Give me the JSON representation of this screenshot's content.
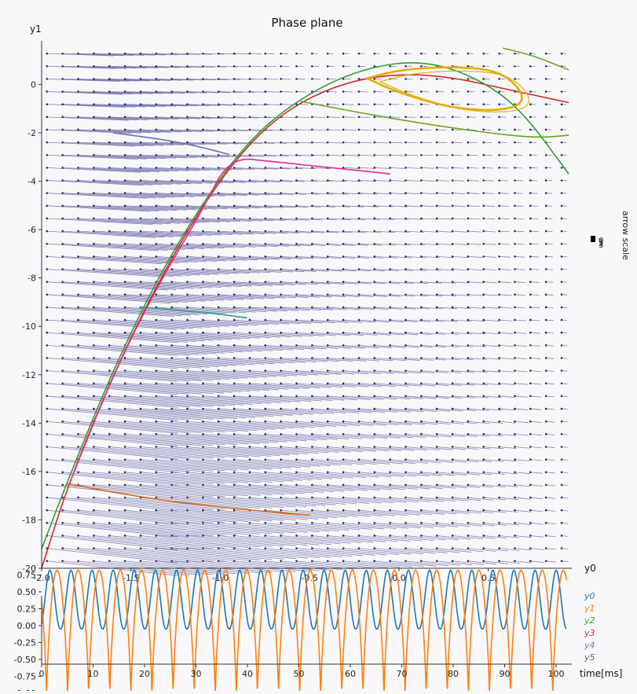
{
  "phase_plane": {
    "title": "Phase plane",
    "xlabel": "y0",
    "ylabel": "y1",
    "colorbar_label": "arrow scale",
    "colorbar_ticks": [
      "0",
      "1",
      "2",
      "3"
    ]
  },
  "time_plot": {
    "xlabel": "time[ms]",
    "legend": [
      "y0",
      "y1",
      "y2",
      "y3",
      "y4",
      "y5"
    ]
  },
  "colors": {
    "legend": [
      "#1f77b4",
      "#ff7f0e",
      "#2ca02c",
      "#d62728",
      "#9467bd",
      "#8c564b"
    ],
    "vector_field": "#5a5a9e",
    "background": "#f8f8fa"
  },
  "chart_data": [
    {
      "type": "scatter",
      "title": "Phase plane",
      "xlabel": "y0",
      "ylabel": "y1",
      "xlim": [
        -2.0,
        0.95
      ],
      "ylim": [
        -20,
        1.8
      ],
      "x_ticks": [
        "-2.0",
        "-1.5",
        "-1.0",
        "-0.5",
        "0.0",
        "0.5"
      ],
      "y_ticks": [
        "0",
        "-2",
        "-4",
        "-6",
        "-8",
        "-10",
        "-12",
        "-14",
        "-16",
        "-18",
        "-20"
      ],
      "vector_field": "quiver",
      "trajectories": [
        {
          "color": "#d62728",
          "points": [
            [
              -2.0,
              -20.0
            ],
            [
              -1.85,
              -16.5
            ],
            [
              -1.6,
              -12.0
            ],
            [
              -1.35,
              -8.2
            ],
            [
              -1.1,
              -5.0
            ],
            [
              -0.85,
              -2.5
            ],
            [
              -0.6,
              -0.9
            ],
            [
              -0.3,
              0.1
            ],
            [
              0.0,
              0.45
            ],
            [
              0.3,
              0.3
            ],
            [
              0.6,
              -0.2
            ],
            [
              0.95,
              -0.75
            ]
          ]
        },
        {
          "color": "#2ca02c",
          "points": [
            [
              -2.0,
              -19.2
            ],
            [
              -1.85,
              -16.3
            ],
            [
              -1.6,
              -11.8
            ],
            [
              -1.35,
              -8.0
            ],
            [
              -1.1,
              -4.9
            ],
            [
              -0.85,
              -2.4
            ],
            [
              -0.6,
              -0.8
            ],
            [
              -0.3,
              0.4
            ],
            [
              0.0,
              0.95
            ],
            [
              0.25,
              0.8
            ],
            [
              0.5,
              0.0
            ],
            [
              0.7,
              -1.2
            ],
            [
              0.95,
              -3.7
            ]
          ]
        },
        {
          "color": "#e7298a",
          "points": [
            [
              -1.85,
              -16.6
            ],
            [
              -1.6,
              -12.0
            ],
            [
              -1.35,
              -8.3
            ],
            [
              -1.1,
              -5.2
            ],
            [
              -0.95,
              -3.0
            ],
            [
              -0.7,
              -3.2
            ],
            [
              -0.3,
              -3.5
            ],
            [
              -0.05,
              -3.7
            ]
          ]
        },
        {
          "color": "#d96a10",
          "points": [
            [
              -1.86,
              -16.5
            ],
            [
              -1.5,
              -17.0
            ],
            [
              -1.0,
              -17.5
            ],
            [
              -0.5,
              -17.8
            ]
          ]
        },
        {
          "color": "#1f9e7a",
          "points": [
            [
              -1.45,
              -9.2
            ],
            [
              -1.2,
              -9.35
            ],
            [
              -1.0,
              -9.5
            ],
            [
              -0.85,
              -9.65
            ]
          ]
        },
        {
          "color": "#6f6fb0",
          "points": [
            [
              -1.6,
              -2.0
            ],
            [
              -1.3,
              -2.3
            ],
            [
              -1.1,
              -2.6
            ],
            [
              -0.95,
              -2.9
            ]
          ]
        },
        {
          "color": "#66a61e",
          "points": [
            [
              -0.55,
              -0.7
            ],
            [
              -0.2,
              -1.2
            ],
            [
              0.2,
              -1.7
            ],
            [
              0.6,
              -2.1
            ],
            [
              0.8,
              -2.2
            ],
            [
              0.95,
              -2.1
            ]
          ]
        },
        {
          "color": "#66a61e",
          "points": [
            [
              0.58,
              1.5
            ],
            [
              0.75,
              1.2
            ],
            [
              0.95,
              0.6
            ]
          ]
        },
        {
          "color": "#e6ab02",
          "closed": true,
          "points": [
            [
              -0.18,
              0.25
            ],
            [
              0.0,
              0.6
            ],
            [
              0.3,
              0.75
            ],
            [
              0.58,
              0.55
            ],
            [
              0.72,
              -0.6
            ],
            [
              0.6,
              -1.1
            ],
            [
              0.3,
              -1.0
            ],
            [
              0.0,
              -0.35
            ],
            [
              -0.18,
              0.25
            ]
          ]
        }
      ]
    },
    {
      "type": "line",
      "xlabel": "time[ms]",
      "xlim": [
        0,
        102
      ],
      "ylim": [
        -1.1,
        0.9
      ],
      "x_ticks": [
        "0",
        "10",
        "20",
        "30",
        "40",
        "50",
        "60",
        "70",
        "80",
        "90",
        "100"
      ],
      "y_ticks": [
        "0.75",
        "0.50",
        "0.25",
        "0.00",
        "-0.25",
        "-0.50",
        "-0.75",
        "-1.00"
      ],
      "period_ms": 4.1,
      "series": [
        {
          "name": "y0",
          "color": "#1f77b4",
          "min": -0.05,
          "max": 0.82
        },
        {
          "name": "y1",
          "color": "#ff7f0e",
          "min": -1.07,
          "max": 0.82
        }
      ]
    }
  ]
}
